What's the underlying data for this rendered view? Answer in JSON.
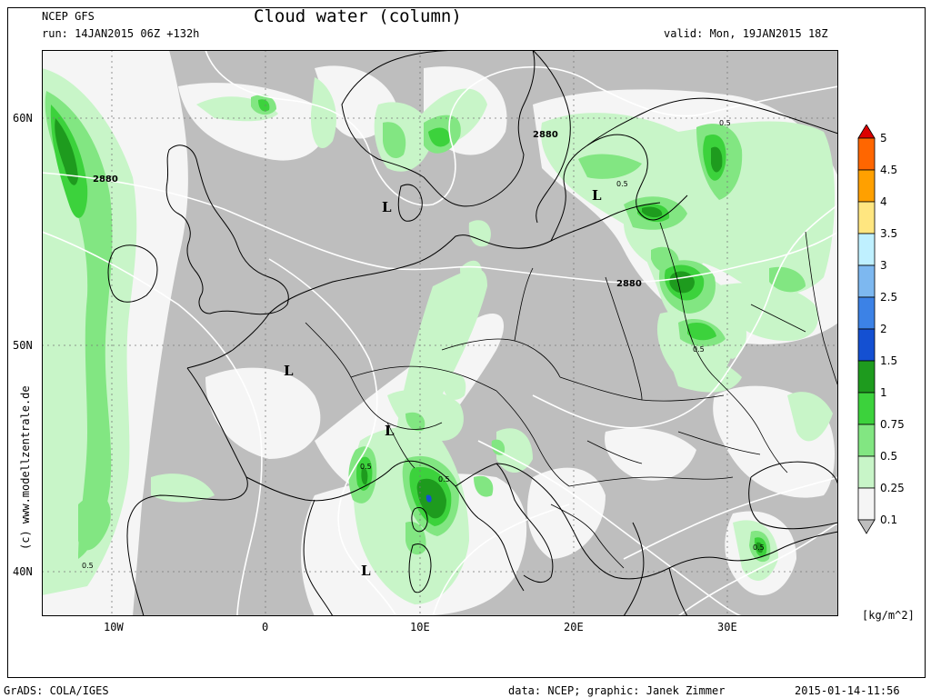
{
  "header": {
    "model": "NCEP GFS",
    "run": "run: 14JAN2015 06Z +132h",
    "title": "Cloud water (column)",
    "valid": "valid: Mon, 19JAN2015 18Z"
  },
  "footer": {
    "software": "GrADS: COLA/IGES",
    "credits": "data: NCEP; graphic: Janek Zimmer",
    "timestamp": "2015-01-14-11:56"
  },
  "watermark": "(c) www.modellzentrale.de",
  "axes": {
    "lat_labels": [
      "60N",
      "50N",
      "40N"
    ],
    "lon_labels": [
      "10W",
      "0",
      "10E",
      "20E",
      "30E"
    ]
  },
  "map_labels": {
    "lows": [
      "L",
      "L",
      "L",
      "L",
      "L"
    ],
    "contour_2880": [
      "2880",
      "2880",
      "2880"
    ],
    "value_05": [
      "0.5",
      "0.5",
      "0.5",
      "0.5",
      "0.5",
      "0.5",
      "0.5"
    ]
  },
  "legend": {
    "unit": "[kg/m^2]",
    "levels": [
      "5",
      "4.5",
      "4",
      "3.5",
      "3",
      "2.5",
      "2",
      "1.5",
      "1",
      "0.75",
      "0.5",
      "0.25",
      "0.1"
    ],
    "colors": [
      "#dc0000",
      "#ff6600",
      "#ffa000",
      "#ffe680",
      "#bff0ff",
      "#7db8f0",
      "#3c82e6",
      "#1450d2",
      "#1e9b1e",
      "#3cd23c",
      "#82e682",
      "#c8f5c8",
      "#f5f5f5",
      "#bebebe"
    ]
  },
  "colors": {
    "land_sea_grey": "#bebebe",
    "light": "#f5f5f5",
    "green1": "#c8f5c8",
    "green2": "#82e682",
    "green3": "#3cd23c",
    "green4": "#1e9b1e"
  }
}
